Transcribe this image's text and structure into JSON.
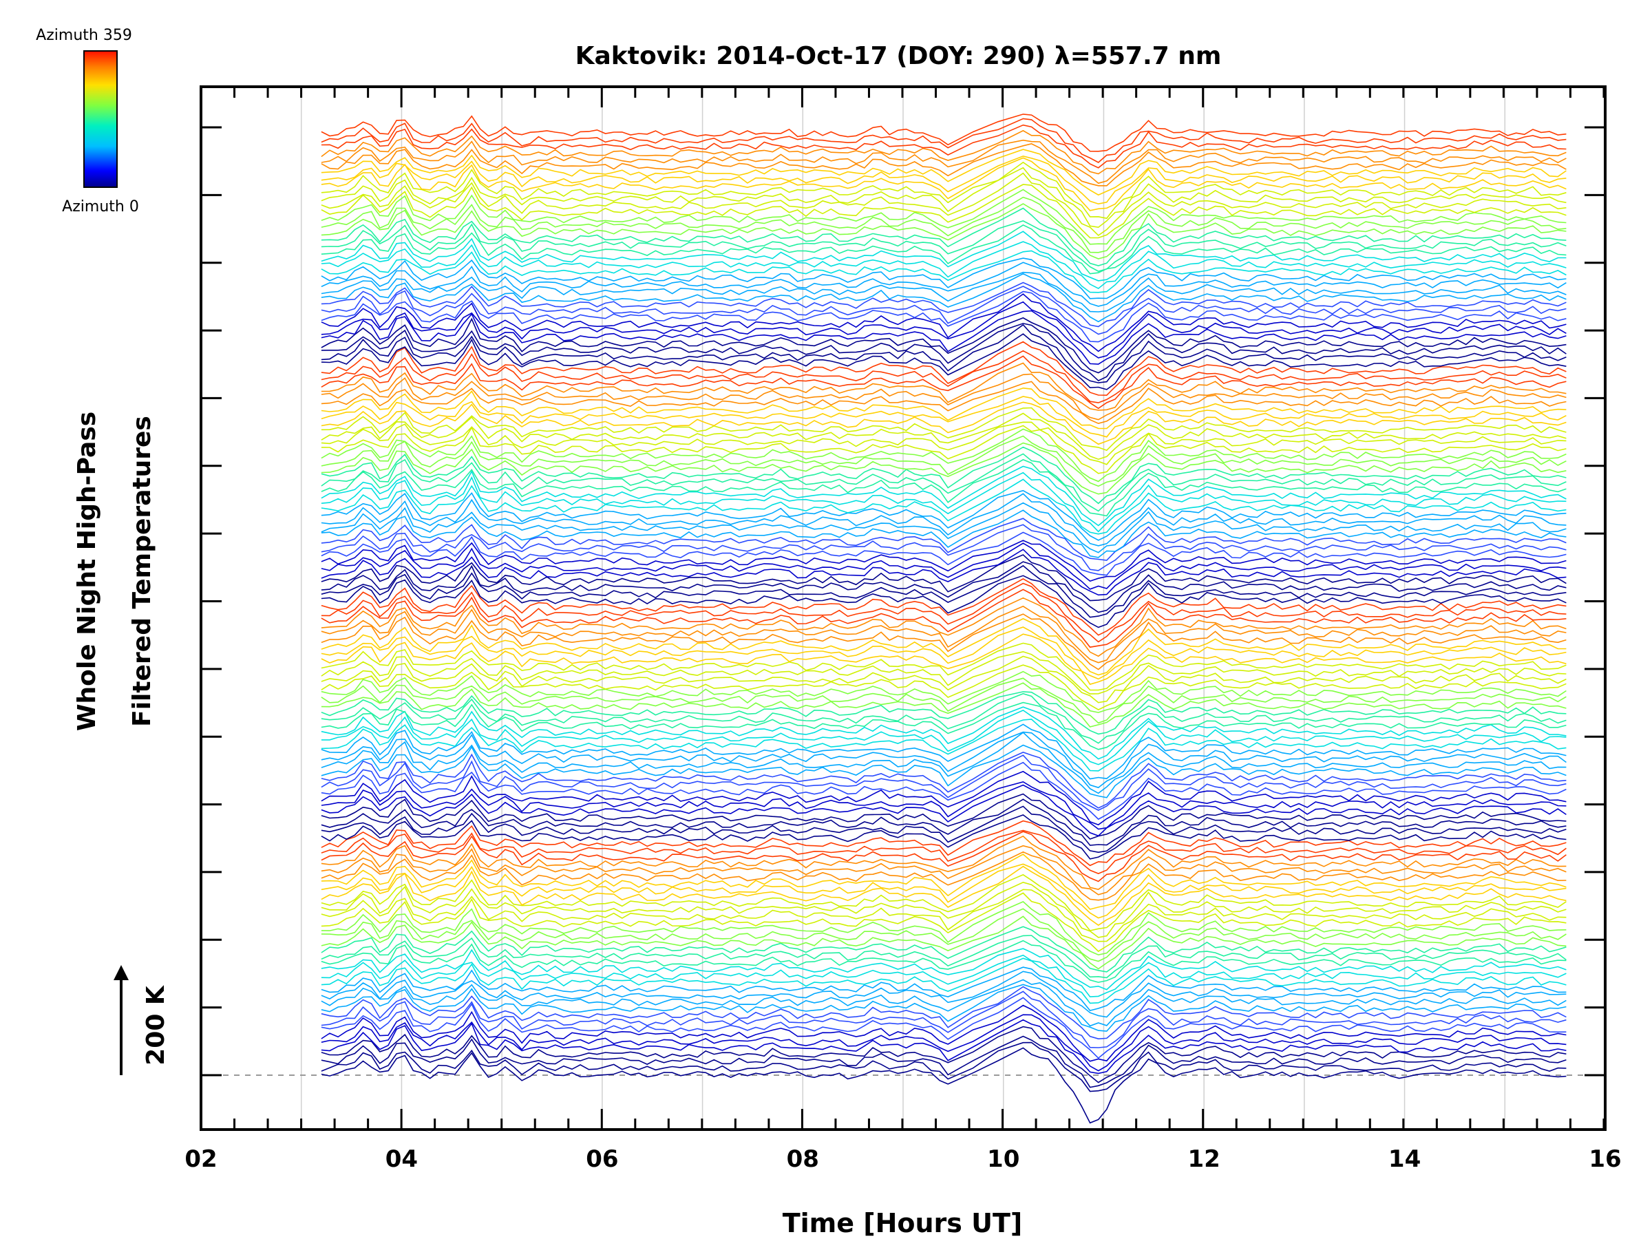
{
  "chart_data": {
    "type": "line",
    "title": "Kaktovik: 2014-Oct-17 (DOY: 290) λ=557.7 nm",
    "xlabel": "Time [Hours UT]",
    "ylabel_line1": "Whole Night High-Pass",
    "ylabel_line2": "Filtered Temperatures",
    "scale_label": "200 K",
    "xlim": [
      2,
      16
    ],
    "x_tick_labels": [
      "02",
      "04",
      "06",
      "08",
      "10",
      "12",
      "14",
      "16"
    ],
    "x_major_ticks": [
      2,
      4,
      6,
      8,
      10,
      12,
      14,
      16
    ],
    "x_minor_step": 0.333,
    "vertical_gridlines": [
      3,
      4,
      5,
      6,
      7,
      8,
      9,
      10,
      11,
      12,
      13,
      14,
      15
    ],
    "y_right_tick_count": 15,
    "series_count": 144,
    "series_step_k": 14,
    "data_start_hour": 3.2,
    "data_end_hour": 15.63,
    "colorbar": {
      "min_label": "Azimuth 0",
      "max_label": "Azimuth 359",
      "min": 0,
      "max": 359
    },
    "common_signal": [
      [
        3.2,
        0
      ],
      [
        3.4,
        2
      ],
      [
        3.5,
        5
      ],
      [
        3.65,
        24
      ],
      [
        3.8,
        -2
      ],
      [
        3.9,
        8
      ],
      [
        4.0,
        36
      ],
      [
        4.1,
        10
      ],
      [
        4.25,
        -4
      ],
      [
        4.4,
        6
      ],
      [
        4.55,
        4
      ],
      [
        4.7,
        30
      ],
      [
        4.8,
        6
      ],
      [
        4.9,
        -2
      ],
      [
        5.05,
        12
      ],
      [
        5.2,
        -6
      ],
      [
        5.35,
        4
      ],
      [
        5.6,
        0
      ],
      [
        6.0,
        2
      ],
      [
        6.5,
        0
      ],
      [
        7.0,
        2
      ],
      [
        7.5,
        0
      ],
      [
        7.75,
        7
      ],
      [
        8.0,
        -1
      ],
      [
        8.25,
        4
      ],
      [
        8.5,
        -2
      ],
      [
        8.75,
        10
      ],
      [
        8.9,
        2
      ],
      [
        9.1,
        6
      ],
      [
        9.35,
        0
      ],
      [
        9.42,
        -16
      ],
      [
        10.2,
        40
      ],
      [
        10.5,
        16
      ],
      [
        10.9,
        -36
      ],
      [
        11.0,
        -34
      ],
      [
        11.2,
        -12
      ],
      [
        11.45,
        22
      ],
      [
        11.65,
        0
      ],
      [
        11.9,
        4
      ],
      [
        12.1,
        10
      ],
      [
        12.3,
        0
      ],
      [
        12.6,
        2
      ],
      [
        13.0,
        0
      ],
      [
        13.5,
        2
      ],
      [
        14.0,
        0
      ],
      [
        14.5,
        2
      ],
      [
        14.9,
        8
      ],
      [
        15.05,
        2
      ],
      [
        15.25,
        6
      ],
      [
        15.4,
        0
      ],
      [
        15.63,
        0
      ]
    ],
    "bottom_series_extra": [
      [
        10.6,
        -10
      ],
      [
        10.9,
        -40
      ],
      [
        11.05,
        -20
      ]
    ],
    "colors": [
      "#00008c",
      "#0000cc",
      "#2a4bff",
      "#00a8ff",
      "#00e0e0",
      "#20f0a0",
      "#80ff40",
      "#d0f000",
      "#ffd000",
      "#ff8c00",
      "#ff3c00"
    ]
  }
}
